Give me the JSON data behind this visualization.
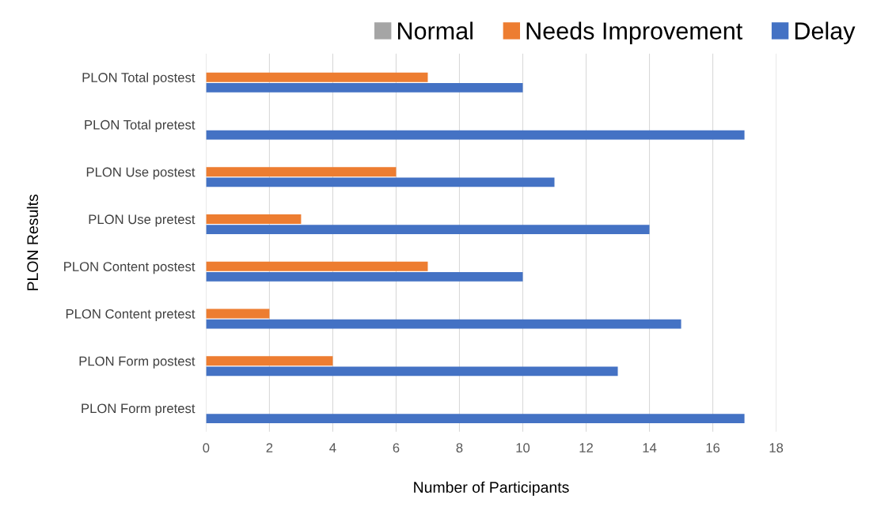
{
  "chart_data": {
    "type": "bar",
    "orientation": "horizontal",
    "xlabel": "Number of Participants",
    "ylabel": "PLON Results",
    "categories": [
      "PLON Total postest",
      "PLON Total pretest",
      "PLON Use postest",
      "PLON Use pretest",
      "PLON Content postest",
      "PLON Content pretest",
      "PLON Form postest",
      "PLON Form pretest"
    ],
    "series": [
      {
        "name": "Normal",
        "color": "#a5a5a5",
        "values": [
          0,
          0,
          0,
          0,
          0,
          0,
          0,
          0
        ]
      },
      {
        "name": "Needs Improvement",
        "color": "#ed7d31",
        "values": [
          7,
          0,
          6,
          3,
          7,
          2,
          4,
          0
        ]
      },
      {
        "name": "Delay",
        "color": "#4472c4",
        "values": [
          10,
          17,
          11,
          14,
          10,
          15,
          13,
          17
        ]
      }
    ],
    "xlim": [
      0,
      18
    ],
    "xticks": [
      0,
      2,
      4,
      6,
      8,
      10,
      12,
      14,
      16,
      18
    ],
    "grid": "x",
    "legend": "top right"
  }
}
